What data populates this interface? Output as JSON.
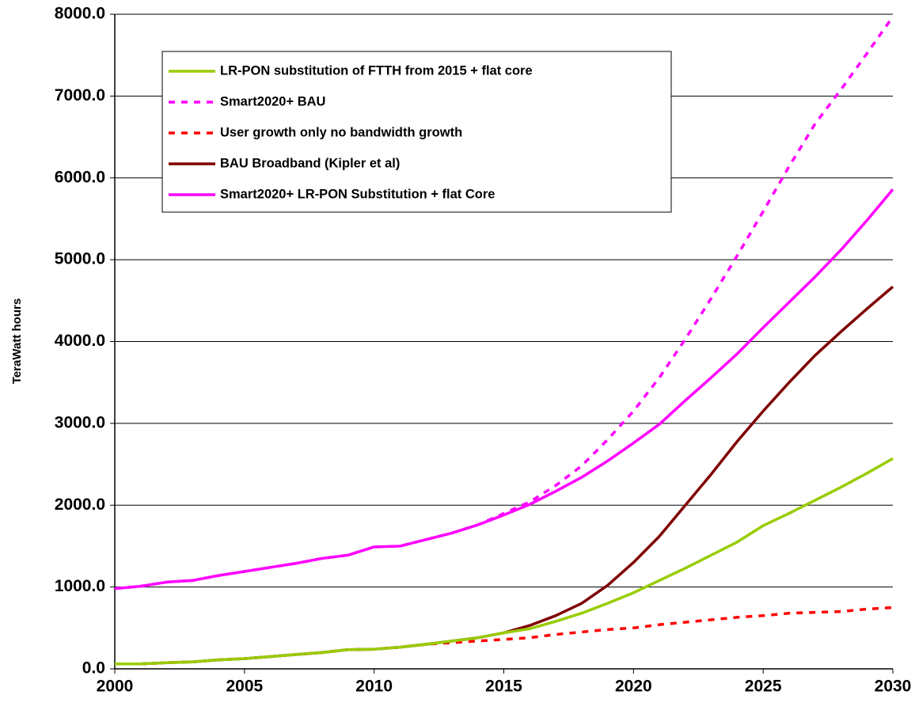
{
  "chart_data": {
    "type": "line",
    "y_label": "TeraWatt hours",
    "x": [
      2000,
      2001,
      2002,
      2003,
      2004,
      2005,
      2006,
      2007,
      2008,
      2009,
      2010,
      2011,
      2012,
      2013,
      2014,
      2015,
      2016,
      2017,
      2018,
      2019,
      2020,
      2021,
      2022,
      2023,
      2024,
      2025,
      2026,
      2027,
      2028,
      2029,
      2030
    ],
    "series": [
      {
        "name": "LR-PON substitution of FTTH from 2015 + flat core",
        "color": "#99cc00",
        "dash": false,
        "values": [
          60,
          60,
          75,
          85,
          110,
          125,
          150,
          175,
          200,
          235,
          240,
          265,
          300,
          340,
          380,
          440,
          490,
          580,
          680,
          800,
          930,
          1080,
          1230,
          1390,
          1550,
          1750,
          1900,
          2060,
          2220,
          2390,
          2570
        ]
      },
      {
        "name": "Smart2020+ BAU",
        "color": "#ff00ff",
        "dash": true,
        "values": [
          980,
          1010,
          1060,
          1080,
          1140,
          1190,
          1240,
          1290,
          1350,
          1390,
          1490,
          1500,
          1580,
          1660,
          1760,
          1900,
          2040,
          2240,
          2480,
          2800,
          3150,
          3560,
          4030,
          4530,
          5050,
          5590,
          6140,
          6660,
          7080,
          7520,
          7970
        ]
      },
      {
        "name": "User growth only no bandwidth growth",
        "color": "#ff0000",
        "dash": true,
        "values": [
          60,
          60,
          75,
          85,
          110,
          125,
          150,
          175,
          200,
          235,
          240,
          265,
          300,
          320,
          340,
          360,
          380,
          420,
          450,
          480,
          500,
          540,
          570,
          600,
          630,
          650,
          680,
          690,
          700,
          730,
          750
        ]
      },
      {
        "name": "BAU Broadband (Kipler et al)",
        "color": "#800000",
        "dash": false,
        "values": [
          60,
          60,
          75,
          85,
          110,
          125,
          150,
          175,
          200,
          235,
          240,
          265,
          300,
          340,
          380,
          440,
          530,
          650,
          800,
          1020,
          1300,
          1620,
          2000,
          2380,
          2780,
          3150,
          3500,
          3830,
          4120,
          4400,
          4670
        ]
      },
      {
        "name": "Smart2020+ LR-PON Substitution + flat Core",
        "color": "#ff00ff",
        "dash": false,
        "values": [
          980,
          1010,
          1060,
          1080,
          1140,
          1190,
          1240,
          1290,
          1350,
          1390,
          1490,
          1500,
          1580,
          1660,
          1760,
          1880,
          2010,
          2170,
          2340,
          2540,
          2760,
          2990,
          3280,
          3560,
          3850,
          4170,
          4480,
          4790,
          5120,
          5480,
          5860
        ]
      }
    ],
    "xlim": [
      2000,
      2030
    ],
    "xticks": [
      2000,
      2005,
      2010,
      2015,
      2020,
      2025,
      2030
    ],
    "ylim": [
      0,
      8000
    ],
    "yticks": [
      {
        "value": 0,
        "label": "0.0"
      },
      {
        "value": 1000,
        "label": "1000.0"
      },
      {
        "value": 2000,
        "label": "2000.0"
      },
      {
        "value": 3000,
        "label": "3000.0"
      },
      {
        "value": 4000,
        "label": "4000.0"
      },
      {
        "value": 5000,
        "label": "5000.0"
      },
      {
        "value": 6000,
        "label": "6000.0"
      },
      {
        "value": 7000,
        "label": "7000.0"
      },
      {
        "value": 8000,
        "label": "8000.0"
      }
    ],
    "grid": true
  }
}
